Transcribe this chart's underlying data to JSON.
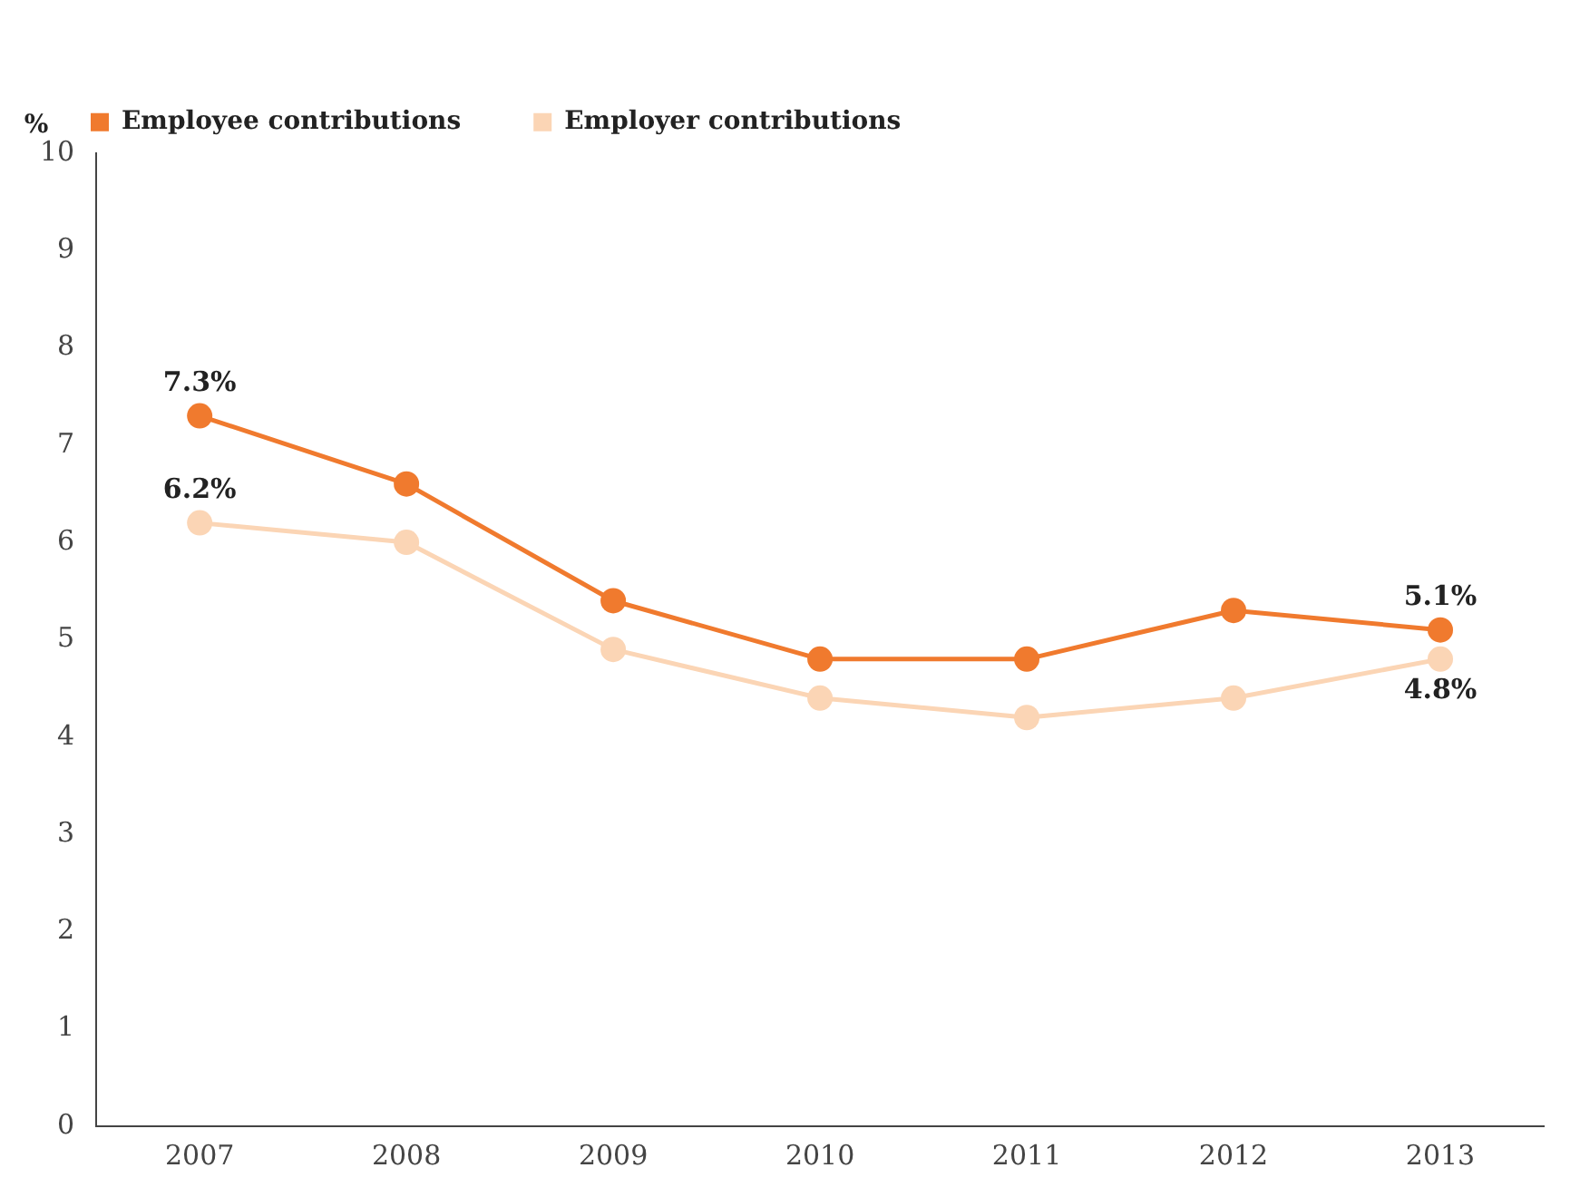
{
  "chart_data": {
    "type": "line",
    "ylabel": "%",
    "categories": [
      "2007",
      "2008",
      "2009",
      "2010",
      "2011",
      "2012",
      "2013"
    ],
    "series": [
      {
        "name": "Employee contributions",
        "color": "#f07a2e",
        "values": [
          7.3,
          6.6,
          5.4,
          4.8,
          4.8,
          5.3,
          5.1
        ],
        "value_labels": [
          "7.3%",
          null,
          null,
          null,
          null,
          null,
          "5.1%"
        ]
      },
      {
        "name": "Employer contributions",
        "color": "#fbd5b5",
        "values": [
          6.2,
          6.0,
          4.9,
          4.4,
          4.2,
          4.4,
          4.8
        ],
        "value_labels": [
          "6.2%",
          null,
          null,
          null,
          null,
          null,
          "4.8%"
        ]
      }
    ],
    "ylim": [
      0,
      10
    ],
    "yticks": [
      0,
      1,
      2,
      3,
      4,
      5,
      6,
      7,
      8,
      9,
      10
    ],
    "grid": false,
    "legend": "top left",
    "marker": "circle",
    "line_style": "solid"
  }
}
